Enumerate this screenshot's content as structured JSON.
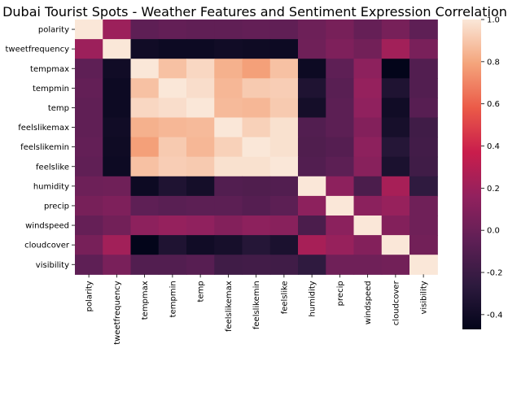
{
  "chart_data": {
    "type": "heatmap",
    "title": "Dubai Tourist Spots -  Weather Features and Sentiment Expression Correlation",
    "xlabel": "",
    "ylabel": "",
    "labels": [
      "polarity",
      "tweetfrequency",
      "tempmax",
      "tempmin",
      "temp",
      "feelslikemax",
      "feelslikemin",
      "feelslike",
      "humidity",
      "precip",
      "windspeed",
      "cloudcover",
      "visibility"
    ],
    "matrix": [
      [
        1.0,
        0.2,
        -0.05,
        -0.03,
        -0.04,
        -0.04,
        -0.03,
        -0.04,
        0.01,
        0.05,
        -0.02,
        0.05,
        -0.05
      ],
      [
        0.2,
        1.0,
        -0.4,
        -0.42,
        -0.42,
        -0.4,
        -0.41,
        -0.42,
        0.02,
        0.08,
        0.03,
        0.22,
        0.06
      ],
      [
        -0.05,
        -0.4,
        1.0,
        0.88,
        0.95,
        0.83,
        0.78,
        0.88,
        -0.42,
        -0.05,
        0.14,
        -0.47,
        -0.1
      ],
      [
        -0.03,
        -0.42,
        0.88,
        1.0,
        0.97,
        0.85,
        0.91,
        0.92,
        -0.33,
        -0.07,
        0.17,
        -0.33,
        -0.1
      ],
      [
        -0.04,
        -0.42,
        0.95,
        0.97,
        1.0,
        0.86,
        0.85,
        0.91,
        -0.38,
        -0.06,
        0.15,
        -0.4,
        -0.08
      ],
      [
        -0.04,
        -0.4,
        0.83,
        0.85,
        0.86,
        1.0,
        0.93,
        0.98,
        -0.1,
        -0.06,
        0.1,
        -0.37,
        -0.18
      ],
      [
        -0.03,
        -0.41,
        0.78,
        0.91,
        0.85,
        0.93,
        1.0,
        0.98,
        -0.11,
        -0.09,
        0.14,
        -0.3,
        -0.17
      ],
      [
        -0.04,
        -0.42,
        0.88,
        0.92,
        0.91,
        0.98,
        0.98,
        1.0,
        -0.1,
        -0.06,
        0.12,
        -0.35,
        -0.18
      ],
      [
        0.01,
        0.02,
        -0.42,
        -0.33,
        -0.38,
        -0.1,
        -0.11,
        -0.1,
        1.0,
        0.14,
        -0.13,
        0.24,
        -0.25
      ],
      [
        0.05,
        0.08,
        -0.05,
        -0.07,
        -0.06,
        -0.06,
        -0.09,
        -0.06,
        0.14,
        1.0,
        0.13,
        0.18,
        0.02
      ],
      [
        -0.02,
        0.03,
        0.14,
        0.17,
        0.15,
        0.1,
        0.14,
        0.12,
        -0.13,
        0.13,
        1.0,
        0.1,
        0.02
      ],
      [
        0.05,
        0.22,
        -0.47,
        -0.33,
        -0.4,
        -0.37,
        -0.3,
        -0.35,
        0.24,
        0.18,
        0.1,
        1.0,
        0.03
      ],
      [
        -0.05,
        0.06,
        -0.1,
        -0.1,
        -0.08,
        -0.18,
        -0.17,
        -0.18,
        -0.25,
        0.02,
        0.02,
        0.03,
        1.0
      ]
    ],
    "colorbar": {
      "min": -0.47,
      "max": 1.0,
      "ticks": [
        "-0.4",
        "-0.2",
        "0.0",
        "0.2",
        "0.4",
        "0.6",
        "0.8",
        "1.0"
      ],
      "tick_values": [
        -0.4,
        -0.2,
        0.0,
        0.2,
        0.4,
        0.6,
        0.8,
        1.0
      ],
      "colormap": "rocket",
      "stops": [
        "#03051a",
        "#2d1a3e",
        "#5e1f55",
        "#92215e",
        "#c91d4c",
        "#eb5a48",
        "#f4a47b",
        "#fae7d8"
      ]
    },
    "grid": false,
    "legend": "colorbar-right"
  }
}
